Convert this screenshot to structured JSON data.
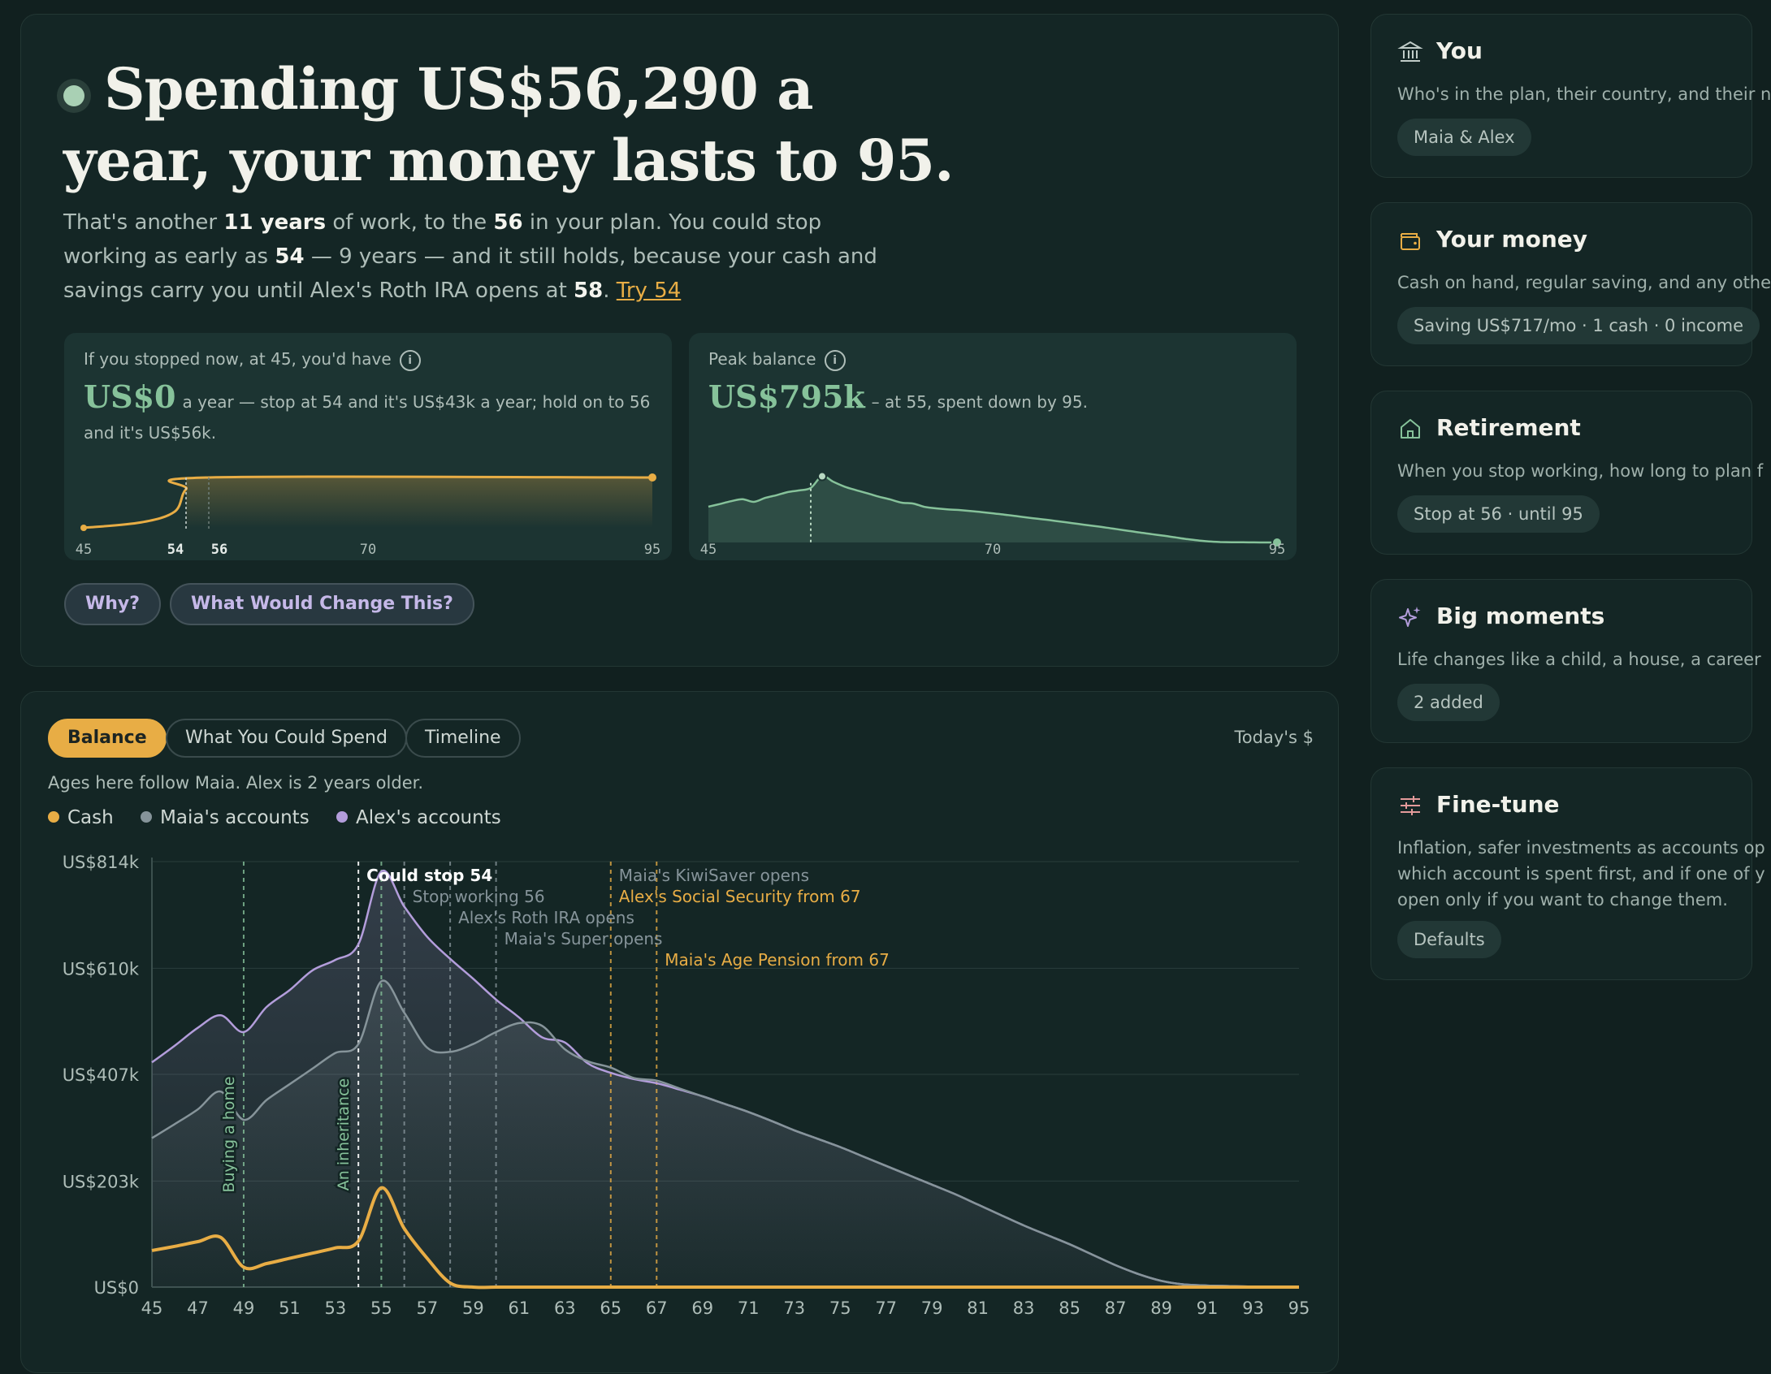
{
  "hero": {
    "headline_1": "Spending US$56,290 a",
    "headline_2": "year, your money lasts to 95.",
    "sub": {
      "p1": "That's another ",
      "b1": "11 years",
      "p2": " of work, to the ",
      "b2": "56",
      "p3": " in your plan. You could stop working as early as ",
      "b3": "54",
      "p4": " — 9 years — and it still holds, because your cash and savings carry you until Alex's Roth IRA opens at ",
      "b4": "58",
      "p5": ". ",
      "link": "Try 54"
    },
    "mini1": {
      "label": "If you stopped now, at 45, you'd have",
      "big": "US$0",
      "text": "a year — stop at 54 and it's US$43k a year; hold on to 56 and it's US$56k.",
      "ticks": [
        "45",
        "54",
        "56",
        "70",
        "95"
      ],
      "levels": [
        {
          "age": 45,
          "spend": 0
        },
        {
          "age": 50,
          "spend": 6
        },
        {
          "age": 53,
          "spend": 18
        },
        {
          "age": 54,
          "spend": 43
        },
        {
          "age": 56,
          "spend": 56
        },
        {
          "age": 95,
          "spend": 56
        }
      ]
    },
    "mini2": {
      "label": "Peak balance",
      "big": "US$795k",
      "text": "– at 55, spent down by 95.",
      "ticks": [
        "45",
        "70",
        "95"
      ]
    },
    "why_label": "Why?",
    "change_label": "What Would Change This?",
    "info_glyph": "i"
  },
  "tabs": {
    "balance": "Balance",
    "spend": "What You Could Spend",
    "timeline": "Timeline",
    "todays": "Today's $"
  },
  "ages_note": "Ages here follow Maia. Alex is 2 years older.",
  "legend": {
    "cash": "Cash",
    "maia": "Maia's accounts",
    "alex": "Alex's accounts"
  },
  "colors": {
    "cash": "#e8ad45",
    "maia": "#86949a",
    "alex": "#b39ddb",
    "green": "#86c29a",
    "gold": "#e8ad45"
  },
  "chart_data": {
    "type": "area",
    "ylabel": "",
    "xlabel": "",
    "x": [
      45,
      46,
      47,
      48,
      49,
      50,
      51,
      52,
      53,
      54,
      55,
      56,
      57,
      58,
      59,
      60,
      61,
      62,
      63,
      64,
      65,
      66,
      67,
      68,
      69,
      70,
      71,
      72,
      73,
      74,
      75,
      76,
      77,
      78,
      79,
      80,
      81,
      82,
      83,
      84,
      85,
      86,
      87,
      88,
      89,
      90,
      91,
      92,
      93,
      94,
      95
    ],
    "ylim": [
      0,
      814
    ],
    "y_unit": "US$k",
    "y_ticks": [
      "US$0",
      "US$203k",
      "US$407k",
      "US$610k",
      "US$814k"
    ],
    "y_tick_values": [
      0,
      203,
      407,
      610,
      814
    ],
    "x_ticks": [
      "45",
      "47",
      "49",
      "51",
      "53",
      "55",
      "57",
      "59",
      "61",
      "63",
      "65",
      "67",
      "69",
      "71",
      "73",
      "75",
      "77",
      "79",
      "81",
      "83",
      "85",
      "87",
      "89",
      "91",
      "93",
      "95"
    ],
    "series": [
      {
        "name": "Cash",
        "values": [
          70,
          78,
          87,
          95,
          38,
          45,
          55,
          65,
          75,
          88,
          190,
          112,
          55,
          8,
          0,
          0,
          0,
          0,
          0,
          0,
          0,
          0,
          0,
          0,
          0,
          0,
          0,
          0,
          0,
          0,
          0,
          0,
          0,
          0,
          0,
          0,
          0,
          0,
          0,
          0,
          0,
          0,
          0,
          0,
          0,
          0,
          0,
          0,
          0,
          0,
          0
        ]
      },
      {
        "name": "Maia's accounts",
        "values": [
          285,
          312,
          340,
          374,
          320,
          358,
          388,
          418,
          448,
          465,
          585,
          525,
          458,
          450,
          465,
          488,
          505,
          500,
          455,
          432,
          420,
          400,
          395,
          380,
          365,
          350,
          335,
          318,
          300,
          284,
          268,
          250,
          232,
          214,
          196,
          178,
          158,
          138,
          118,
          100,
          82,
          62,
          42,
          25,
          12,
          5,
          3,
          2,
          1,
          0,
          0
        ]
      },
      {
        "name": "Alex's accounts",
        "values": [
          430,
          462,
          496,
          520,
          488,
          536,
          568,
          606,
          626,
          656,
          795,
          728,
          670,
          628,
          590,
          550,
          516,
          478,
          468,
          428,
          410,
          398,
          390,
          378,
          365,
          350,
          335,
          318,
          300,
          284,
          268,
          250,
          232,
          214,
          196,
          178,
          158,
          138,
          118,
          100,
          82,
          62,
          42,
          25,
          12,
          5,
          3,
          2,
          1,
          0,
          0
        ]
      }
    ],
    "events": [
      {
        "age": 49,
        "label": "Buying a home",
        "color": "#86c29a",
        "vertical": true
      },
      {
        "age": 54,
        "label": "An inheritance",
        "color": "#86c29a",
        "vertical": true
      },
      {
        "age": 54,
        "label": "Could stop 54",
        "color": "#ffffff"
      },
      {
        "age": 55,
        "label": "",
        "color": "#86c29a"
      },
      {
        "age": 56,
        "label": "Stop working 56",
        "color": "#86949a"
      },
      {
        "age": 58,
        "label": "Alex's Roth IRA opens",
        "color": "#86949a"
      },
      {
        "age": 60,
        "label": "Maia's Super opens",
        "color": "#86949a"
      },
      {
        "age": 65,
        "label": "Maia's KiwiSaver opens",
        "color": "#86949a"
      },
      {
        "age": 65,
        "label": "Alex's Social Security from 67",
        "color": "#e8ad45"
      },
      {
        "age": 67,
        "label": "Maia's Age Pension from 67",
        "color": "#e8ad45"
      }
    ]
  },
  "sidebar": {
    "you": {
      "title": "You",
      "desc": "Who's in the plan, their country, and their n",
      "chip": "Maia & Alex",
      "icon": "bank-icon"
    },
    "money": {
      "title": "Your money",
      "desc": "Cash on hand, regular saving, and any othe",
      "chip": "Saving US$717/mo · 1 cash · 0 income",
      "icon": "wallet-icon"
    },
    "retire": {
      "title": "Retirement",
      "desc": "When you stop working, how long to plan f",
      "chip": "Stop at 56 · until 95",
      "icon": "home-icon"
    },
    "moments": {
      "title": "Big moments",
      "desc": "Life changes like a child, a house, a career",
      "chip": "2 added",
      "icon": "sparkle-icon"
    },
    "finetune": {
      "title": "Fine-tune",
      "desc1": "Inflation, safer investments as accounts op",
      "desc2": "which account is spent first, and if one of y",
      "desc3": "open only if you want to change them.",
      "chip": "Defaults",
      "icon": "sliders-icon"
    }
  }
}
